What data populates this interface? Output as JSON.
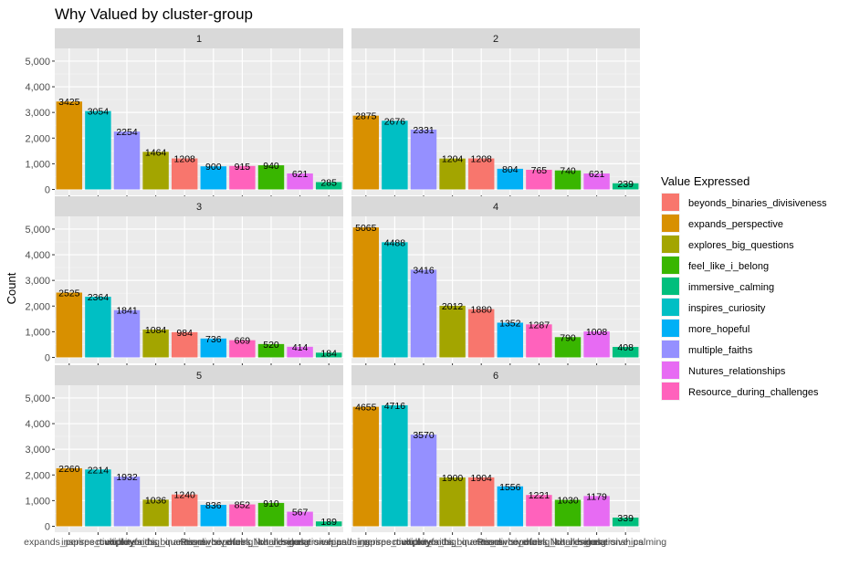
{
  "chart_data": {
    "type": "bar",
    "title": "Why Valued by cluster-group",
    "xlabel": "",
    "ylabel": "Count",
    "ylim": [
      0,
      5300
    ],
    "yticks": [
      0,
      1000,
      2000,
      3000,
      4000,
      5000
    ],
    "ytick_labels": [
      "0",
      "1,000",
      "2,000",
      "3,000",
      "4,000",
      "5,000"
    ],
    "grid": true,
    "legend_position": "right",
    "legend_title": "Value Expressed",
    "categories": [
      "expands_perspective",
      "inspires_curiosity",
      "multiple_faiths",
      "explores_big_questions",
      "beyonds_binaries_divisiveness",
      "more_hopeful",
      "Resource_during_challenges",
      "feel_like_i_belong",
      "Nutures_relationships",
      "immersive_calming"
    ],
    "legend": [
      {
        "name": "beyonds_binaries_divisiveness",
        "color": "#F8766D"
      },
      {
        "name": "expands_perspective",
        "color": "#D89000"
      },
      {
        "name": "explores_big_questions",
        "color": "#A3A500"
      },
      {
        "name": "feel_like_i_belong",
        "color": "#39B600"
      },
      {
        "name": "immersive_calming",
        "color": "#00BF7D"
      },
      {
        "name": "inspires_curiosity",
        "color": "#00BFC4"
      },
      {
        "name": "more_hopeful",
        "color": "#00B0F6"
      },
      {
        "name": "multiple_faiths",
        "color": "#9590FF"
      },
      {
        "name": "Nutures_relationships",
        "color": "#E76BF3"
      },
      {
        "name": "Resource_during_challenges",
        "color": "#FF62BC"
      }
    ],
    "facets": [
      {
        "label": "1",
        "values": [
          3425,
          3054,
          2254,
          1464,
          1208,
          900,
          915,
          940,
          621,
          285
        ]
      },
      {
        "label": "2",
        "values": [
          2875,
          2676,
          2331,
          1204,
          1208,
          804,
          765,
          740,
          621,
          239
        ]
      },
      {
        "label": "3",
        "values": [
          2525,
          2364,
          1841,
          1084,
          984,
          736,
          669,
          520,
          414,
          184
        ]
      },
      {
        "label": "4",
        "values": [
          5065,
          4488,
          3416,
          2012,
          1880,
          1352,
          1287,
          790,
          1008,
          408
        ]
      },
      {
        "label": "5",
        "values": [
          2260,
          2214,
          1932,
          1036,
          1240,
          836,
          852,
          910,
          567,
          189
        ]
      },
      {
        "label": "6",
        "values": [
          4655,
          4716,
          3570,
          1900,
          1904,
          1556,
          1221,
          1030,
          1179,
          339
        ]
      }
    ]
  }
}
